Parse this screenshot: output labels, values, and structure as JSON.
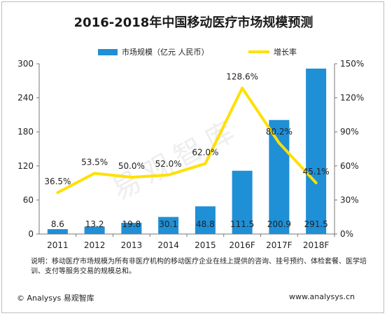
{
  "title": "2016-2018年中国移动医疗市场规模预测",
  "legend": {
    "bar_label": "市场规模（亿元 人民币）",
    "line_label": "增长率"
  },
  "chart_data": {
    "type": "bar",
    "title": "2016-2018年中国移动医疗市场规模预测",
    "categories": [
      "2011",
      "2012",
      "2013",
      "2014",
      "2015",
      "2016F",
      "2017F",
      "2018F"
    ],
    "series": [
      {
        "name": "市场规模（亿元 人民币）",
        "type": "bar",
        "axis": "left",
        "color": "#1f8fd6",
        "values": [
          8.6,
          13.2,
          19.8,
          30.1,
          48.8,
          111.5,
          200.9,
          291.5
        ],
        "labels": [
          "8.6",
          "13.2",
          "19.8",
          "30.1",
          "48.8",
          "111.5",
          "200.9",
          "291.5"
        ]
      },
      {
        "name": "增长率",
        "type": "line",
        "axis": "right",
        "color": "#ffe000",
        "values": [
          36.5,
          53.5,
          50.0,
          52.0,
          62.0,
          128.6,
          80.2,
          45.1
        ],
        "labels": [
          "36.5%",
          "53.5%",
          "50.0%",
          "52.0%",
          "62.0%",
          "128.6%",
          "80.2%",
          "45.1%"
        ]
      }
    ],
    "y_left": {
      "min": 0,
      "max": 300,
      "ticks": [
        "0",
        "60",
        "120",
        "180",
        "240",
        "300"
      ]
    },
    "y_right": {
      "min": 0,
      "max": 150,
      "ticks": [
        "0%",
        "30%",
        "60%",
        "90%",
        "120%",
        "150%"
      ]
    },
    "grid": false,
    "legend_position": "top"
  },
  "note": "说明：移动医疗市场规模为所有非医疗机构的移动医疗企业在线上提供的咨询、挂号预约、体检套餐、医学培训、支付等服务交易的规模总和。",
  "footer": {
    "source": "© Analysys 易观智库",
    "url": "www.analysys.cn"
  },
  "watermark": "易观智库"
}
